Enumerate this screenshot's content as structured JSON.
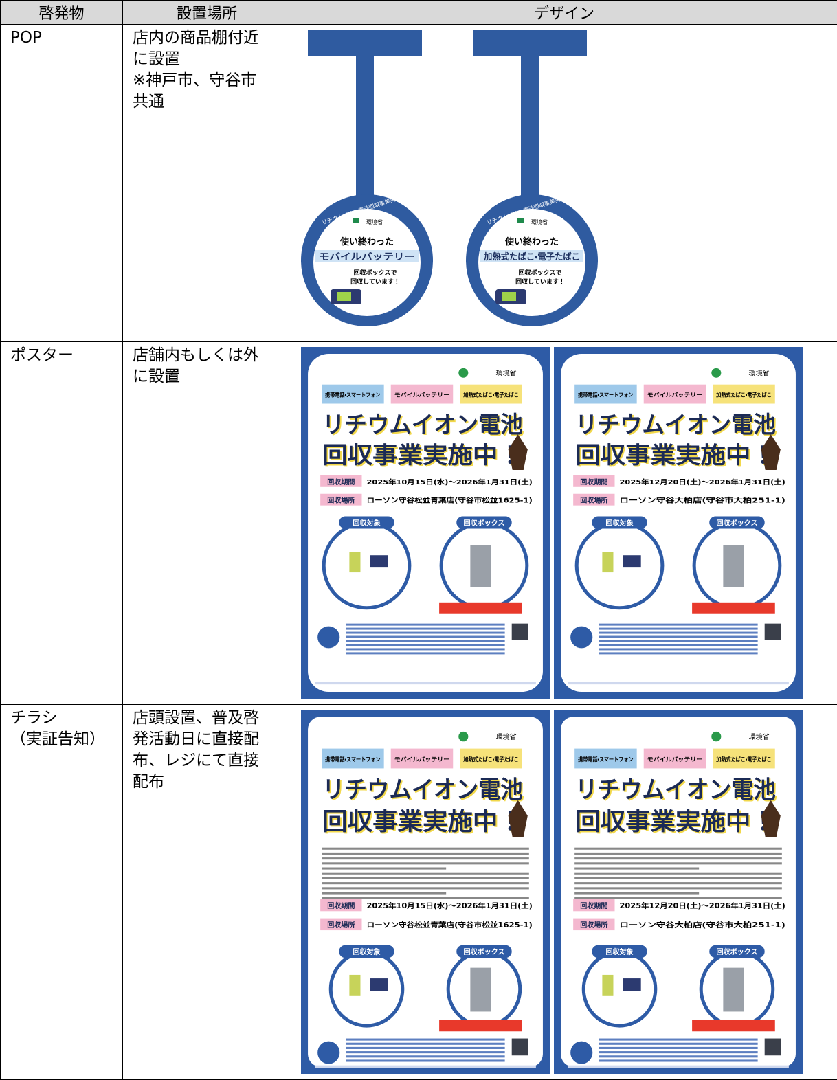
{
  "table": {
    "header": [
      "啓発物",
      "設置場所",
      "デザイン"
    ],
    "rows": [
      {
        "item": [
          "POP"
        ],
        "place": [
          "店内の商品棚付近",
          "に設置",
          "※神戸市、守谷市",
          "共通"
        ],
        "design": {
          "kind": "pop",
          "items": [
            {
              "arc": "リチウムイオン電池回収事業実施中！",
              "lead": "使い終わった",
              "product": "モバイルバッテリー",
              "note": [
                "回収ボックスで",
                "回収しています！"
              ]
            },
            {
              "arc": "リチウムイオン電池回収事業実施中！",
              "lead": "使い終わった",
              "product": "加熱式たばこ・電子たばこ",
              "note": [
                "回収ボックスで",
                "回収しています！"
              ]
            }
          ]
        }
      },
      {
        "item": [
          "ポスター"
        ],
        "place": [
          "店舗内もしくは外",
          "に設置"
        ],
        "design": {
          "kind": "poster",
          "items": [
            {
              "period": "2025年10月15日(水)～2026年1月31日(土)",
              "shop": "ローソン守谷松並青葉店(守谷市松並1625-1)"
            },
            {
              "period": "2025年12月20日(土)～2026年1月31日(土)",
              "shop": "ローソン守谷大柏店(守谷市大柏251-1)"
            }
          ]
        }
      },
      {
        "item": [
          "チラシ",
          "（実証告知）"
        ],
        "place": [
          "店頭設置、普及啓",
          "発活動日に直接配",
          "布、レジにて直接",
          "配布"
        ],
        "design": {
          "kind": "flyer",
          "items": [
            {
              "period": "2025年10月15日(水)～2026年1月31日(土)",
              "shop": "ローソン守谷松並青葉店(守谷市松並1625-1)"
            },
            {
              "period": "2025年12月20日(土)～2026年1月31日(土)",
              "shop": "ローソン守谷大柏店(守谷市大柏251-1)"
            }
          ]
        }
      }
    ]
  },
  "poster_common": {
    "ministry": "環境省",
    "categories": [
      "携帯電話・スマートフォン",
      "モバイルバッテリー",
      "加熱式たばこ・電子たばこ"
    ],
    "headline": [
      "リチウムイオン電池",
      "回収事業実施中！"
    ],
    "period_label": "回収期間",
    "place_label": "回収場所",
    "target_label": "回収対象",
    "box_label": "回収ボックス"
  }
}
